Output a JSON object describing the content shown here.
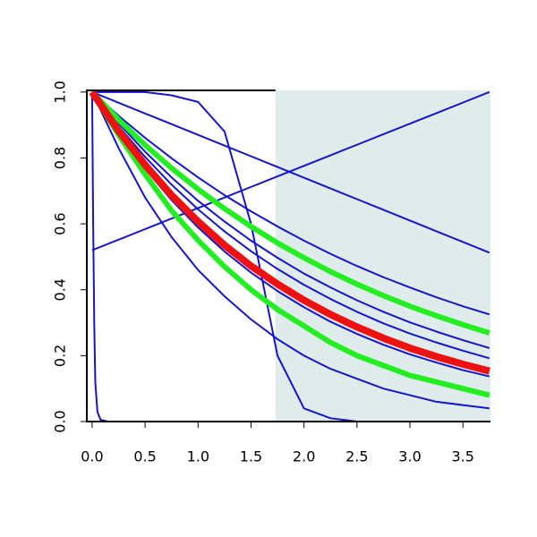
{
  "chart_data": {
    "type": "line",
    "x": [
      0,
      0.25,
      0.5,
      0.75,
      1,
      1.25,
      1.5,
      1.75,
      2,
      2.25,
      2.5,
      2.75,
      3,
      3.25,
      3.5,
      3.75
    ],
    "xlim": [
      -0.05,
      3.76
    ],
    "ylim": [
      0,
      1.005
    ],
    "xticks": [
      {
        "value": 0,
        "label": "0.0"
      },
      0.5,
      {
        "value": 1,
        "label": "1.0"
      },
      1.5,
      {
        "value": 2,
        "label": "2.0"
      },
      2.5,
      {
        "value": 3,
        "label": "3.0"
      },
      3.5
    ],
    "yticks": [
      {
        "value": 0,
        "label": "0.0"
      },
      0.2,
      0.4,
      0.6,
      0.8,
      {
        "value": 1,
        "label": "1.0"
      }
    ],
    "shade_xmin": 1.73,
    "shade_color": "#dfeceb",
    "series": [
      {
        "color": "#1414d2",
        "width": 2,
        "values": [
          1,
          0.9675,
          0.935,
          0.9025,
          0.87,
          0.8375,
          0.805,
          0.7725,
          0.74,
          0.7075,
          0.675,
          0.6425,
          0.61,
          0.5775,
          0.545,
          0.5125
        ]
      },
      {
        "color": "#1414d2",
        "width": 2,
        "values": [
          0.52,
          0.552,
          0.584,
          0.616,
          0.648,
          0.68,
          0.712,
          0.744,
          0.776,
          0.808,
          0.84,
          0.872,
          0.904,
          0.936,
          0.968,
          1
        ]
      },
      {
        "color": "#1414d2",
        "width": 2,
        "values": [
          1,
          1,
          1,
          0.99,
          0.97,
          0.88,
          0.6,
          0.2,
          0.04,
          0.01,
          0,
          0,
          0,
          0,
          0,
          0
        ]
      },
      {
        "color": "#1414d2",
        "width": 2,
        "x": [
          0,
          0.01,
          0.02,
          0.03,
          0.05,
          0.08,
          0.15,
          3.75
        ],
        "values": [
          1,
          0.6,
          0.3,
          0.12,
          0.03,
          0.005,
          0,
          0
        ]
      },
      {
        "color": "#1414d2",
        "width": 2,
        "values": [
          1,
          0.83,
          0.68,
          0.56,
          0.46,
          0.38,
          0.31,
          0.25,
          0.2,
          0.16,
          0.13,
          0.1,
          0.08,
          0.06,
          0.05,
          0.04
        ]
      },
      {
        "color": "#1414d2",
        "width": 2,
        "values": [
          1,
          0.928,
          0.861,
          0.799,
          0.741,
          0.687,
          0.638,
          0.592,
          0.549,
          0.509,
          0.472,
          0.438,
          0.407,
          0.377,
          0.35,
          0.325
        ]
      },
      {
        "color": "#1414d2",
        "width": 2,
        "values": [
          1,
          0.905,
          0.819,
          0.741,
          0.67,
          0.607,
          0.549,
          0.497,
          0.449,
          0.407,
          0.368,
          0.333,
          0.301,
          0.273,
          0.247,
          0.223
        ]
      },
      {
        "color": "#1414d2",
        "width": 2,
        "values": [
          1,
          0.896,
          0.803,
          0.719,
          0.644,
          0.577,
          0.517,
          0.463,
          0.415,
          0.372,
          0.333,
          0.298,
          0.267,
          0.24,
          0.215,
          0.192
        ]
      },
      {
        "color": "#1414d2",
        "width": 2,
        "values": [
          1,
          0.876,
          0.767,
          0.672,
          0.589,
          0.516,
          0.452,
          0.396,
          0.347,
          0.303,
          0.266,
          0.233,
          0.204,
          0.179,
          0.156,
          0.137
        ]
      },
      {
        "color": "#22ee22",
        "width": 6,
        "values": [
          1,
          0.916,
          0.839,
          0.769,
          0.705,
          0.646,
          0.592,
          0.542,
          0.497,
          0.455,
          0.417,
          0.382,
          0.35,
          0.321,
          0.294,
          0.269
        ]
      },
      {
        "color": "#22ee22",
        "width": 6,
        "values": [
          1,
          0.87,
          0.75,
          0.64,
          0.55,
          0.47,
          0.4,
          0.34,
          0.29,
          0.24,
          0.2,
          0.17,
          0.14,
          0.12,
          0.1,
          0.08
        ]
      },
      {
        "color": "#ee1111",
        "width": 8,
        "values": [
          1,
          0.882,
          0.779,
          0.687,
          0.607,
          0.535,
          0.472,
          0.417,
          0.368,
          0.325,
          0.287,
          0.253,
          0.223,
          0.197,
          0.174,
          0.153
        ]
      }
    ]
  }
}
